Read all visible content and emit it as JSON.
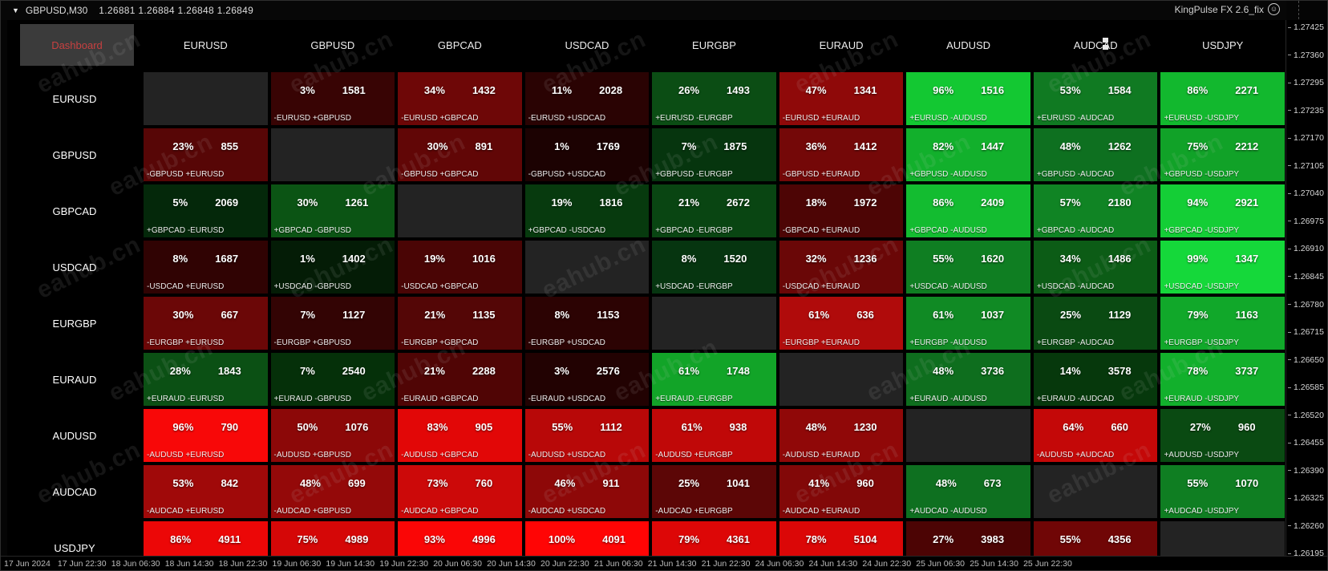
{
  "window": {
    "dropdown_glyph": "▼",
    "title_symbol": "GBPUSD,M30",
    "title_quotes": "1.26881 1.26884 1.26848 1.26849",
    "brand": "KingPulse FX 2.6_fix",
    "smiley_glyph": "☺"
  },
  "dashboard": {
    "button_label": "Dashboard",
    "columns": [
      "EURUSD",
      "GBPUSD",
      "GBPCAD",
      "USDCAD",
      "EURGBP",
      "EURAUD",
      "AUDUSD",
      "AUDCAD",
      "USDJPY"
    ],
    "rows": [
      {
        "label": "EURUSD",
        "cells": [
          null,
          {
            "pct": "3%",
            "val": "1581",
            "action": "-EURUSD +GBPUSD",
            "bg": "#380404"
          },
          {
            "pct": "34%",
            "val": "1432",
            "action": "-EURUSD +GBPCAD",
            "bg": "#6e0707"
          },
          {
            "pct": "11%",
            "val": "2028",
            "action": "-EURUSD +USDCAD",
            "bg": "#2a0303"
          },
          {
            "pct": "26%",
            "val": "1493",
            "action": "+EURUSD -EURGBP",
            "bg": "#0b4d14"
          },
          {
            "pct": "47%",
            "val": "1341",
            "action": "-EURUSD +EURAUD",
            "bg": "#8f0909"
          },
          {
            "pct": "96%",
            "val": "1516",
            "action": "+EURUSD -AUDUSD",
            "bg": "#13c832"
          },
          {
            "pct": "53%",
            "val": "1584",
            "action": "+EURUSD -AUDCAD",
            "bg": "#107a22"
          },
          {
            "pct": "86%",
            "val": "2271",
            "action": "+EURUSD -USDJPY",
            "bg": "#12b82e"
          }
        ]
      },
      {
        "label": "GBPUSD",
        "cells": [
          {
            "pct": "23%",
            "val": "855",
            "action": "-GBPUSD +EURUSD",
            "bg": "#570606"
          },
          null,
          {
            "pct": "30%",
            "val": "891",
            "action": "-GBPUSD +GBPCAD",
            "bg": "#610606"
          },
          {
            "pct": "1%",
            "val": "1769",
            "action": "-GBPUSD +USDCAD",
            "bg": "#1c0202"
          },
          {
            "pct": "7%",
            "val": "1875",
            "action": "+GBPUSD -EURGBP",
            "bg": "#06350e"
          },
          {
            "pct": "36%",
            "val": "1412",
            "action": "-GBPUSD +EURAUD",
            "bg": "#740808"
          },
          {
            "pct": "82%",
            "val": "1447",
            "action": "+GBPUSD -AUDUSD",
            "bg": "#12b02c"
          },
          {
            "pct": "48%",
            "val": "1262",
            "action": "+GBPUSD -AUDCAD",
            "bg": "#0e7020"
          },
          {
            "pct": "75%",
            "val": "2212",
            "action": "+GBPUSD -USDJPY",
            "bg": "#11a228"
          }
        ]
      },
      {
        "label": "GBPCAD",
        "cells": [
          {
            "pct": "5%",
            "val": "2069",
            "action": "+GBPCAD -EURUSD",
            "bg": "#04280a"
          },
          {
            "pct": "30%",
            "val": "1261",
            "action": "+GBPCAD -GBPUSD",
            "bg": "#0b5414"
          },
          null,
          {
            "pct": "19%",
            "val": "1816",
            "action": "+GBPCAD -USDCAD",
            "bg": "#073a0e"
          },
          {
            "pct": "21%",
            "val": "2672",
            "action": "+GBPCAD -EURGBP",
            "bg": "#094512"
          },
          {
            "pct": "18%",
            "val": "1972",
            "action": "-GBPCAD +EURAUD",
            "bg": "#4d0505"
          },
          {
            "pct": "86%",
            "val": "2409",
            "action": "+GBPCAD -AUDUSD",
            "bg": "#13bc30"
          },
          {
            "pct": "57%",
            "val": "2180",
            "action": "+GBPCAD -AUDCAD",
            "bg": "#108424"
          },
          {
            "pct": "94%",
            "val": "2921",
            "action": "+GBPCAD -USDJPY",
            "bg": "#14ce36"
          }
        ]
      },
      {
        "label": "USDCAD",
        "cells": [
          {
            "pct": "8%",
            "val": "1687",
            "action": "-USDCAD +EURUSD",
            "bg": "#300303"
          },
          {
            "pct": "1%",
            "val": "1402",
            "action": "+USDCAD -GBPUSD",
            "bg": "#041c06"
          },
          {
            "pct": "19%",
            "val": "1016",
            "action": "-USDCAD +GBPCAD",
            "bg": "#4a0505"
          },
          null,
          {
            "pct": "8%",
            "val": "1520",
            "action": "+USDCAD -EURGBP",
            "bg": "#063510"
          },
          {
            "pct": "32%",
            "val": "1236",
            "action": "-USDCAD +EURAUD",
            "bg": "#6a0707"
          },
          {
            "pct": "55%",
            "val": "1620",
            "action": "+USDCAD -AUDUSD",
            "bg": "#0f7e22"
          },
          {
            "pct": "34%",
            "val": "1486",
            "action": "+USDCAD -AUDCAD",
            "bg": "#0c5c16"
          },
          {
            "pct": "99%",
            "val": "1347",
            "action": "+USDCAD -USDJPY",
            "bg": "#15d83a"
          }
        ]
      },
      {
        "label": "EURGBP",
        "cells": [
          {
            "pct": "30%",
            "val": "667",
            "action": "-EURGBP +EURUSD",
            "bg": "#6b0707"
          },
          {
            "pct": "7%",
            "val": "1127",
            "action": "-EURGBP +GBPUSD",
            "bg": "#330404"
          },
          {
            "pct": "21%",
            "val": "1135",
            "action": "-EURGBP +GBPCAD",
            "bg": "#540606"
          },
          {
            "pct": "8%",
            "val": "1153",
            "action": "-EURGBP +USDCAD",
            "bg": "#2c0303"
          },
          null,
          {
            "pct": "61%",
            "val": "636",
            "action": "-EURGBP +EURAUD",
            "bg": "#b00b0b"
          },
          {
            "pct": "61%",
            "val": "1037",
            "action": "+EURGBP -AUDUSD",
            "bg": "#108a24"
          },
          {
            "pct": "25%",
            "val": "1129",
            "action": "+EURGBP -AUDCAD",
            "bg": "#0a4a12"
          },
          {
            "pct": "79%",
            "val": "1163",
            "action": "+EURGBP -USDJPY",
            "bg": "#11a82a"
          }
        ]
      },
      {
        "label": "EURAUD",
        "cells": [
          {
            "pct": "28%",
            "val": "1843",
            "action": "+EURAUD -EURUSD",
            "bg": "#0b5014"
          },
          {
            "pct": "7%",
            "val": "2540",
            "action": "+EURAUD -GBPUSD",
            "bg": "#053009"
          },
          {
            "pct": "21%",
            "val": "2288",
            "action": "-EURAUD +GBPCAD",
            "bg": "#500505"
          },
          {
            "pct": "3%",
            "val": "2576",
            "action": "-EURAUD +USDCAD",
            "bg": "#220202"
          },
          {
            "pct": "61%",
            "val": "1748",
            "action": "+EURAUD -EURGBP",
            "bg": "#12a428"
          },
          null,
          {
            "pct": "48%",
            "val": "3736",
            "action": "+EURAUD -AUDUSD",
            "bg": "#0e6e1e"
          },
          {
            "pct": "14%",
            "val": "3578",
            "action": "+EURAUD -AUDCAD",
            "bg": "#06380c"
          },
          {
            "pct": "78%",
            "val": "3737",
            "action": "+EURAUD -USDJPY",
            "bg": "#12b02c"
          }
        ]
      },
      {
        "label": "AUDUSD",
        "cells": [
          {
            "pct": "96%",
            "val": "790",
            "action": "-AUDUSD +EURUSD",
            "bg": "#f80808"
          },
          {
            "pct": "50%",
            "val": "1076",
            "action": "-AUDUSD +GBPUSD",
            "bg": "#8c0808"
          },
          {
            "pct": "83%",
            "val": "905",
            "action": "-AUDUSD +GBPCAD",
            "bg": "#e20707"
          },
          {
            "pct": "55%",
            "val": "1112",
            "action": "-AUDUSD +USDCAD",
            "bg": "#b80808"
          },
          {
            "pct": "61%",
            "val": "938",
            "action": "-AUDUSD +EURGBP",
            "bg": "#c00808"
          },
          {
            "pct": "48%",
            "val": "1230",
            "action": "-AUDUSD +EURAUD",
            "bg": "#900808"
          },
          null,
          {
            "pct": "64%",
            "val": "660",
            "action": "-AUDUSD +AUDCAD",
            "bg": "#c40808"
          },
          {
            "pct": "27%",
            "val": "960",
            "action": "+AUDUSD -USDJPY",
            "bg": "#0a4a12"
          }
        ]
      },
      {
        "label": "AUDCAD",
        "cells": [
          {
            "pct": "53%",
            "val": "842",
            "action": "-AUDCAD +EURUSD",
            "bg": "#a00909"
          },
          {
            "pct": "48%",
            "val": "699",
            "action": "-AUDCAD +GBPUSD",
            "bg": "#940909"
          },
          {
            "pct": "73%",
            "val": "760",
            "action": "-AUDCAD +GBPCAD",
            "bg": "#cc0909"
          },
          {
            "pct": "46%",
            "val": "911",
            "action": "-AUDCAD +USDCAD",
            "bg": "#8e0808"
          },
          {
            "pct": "25%",
            "val": "1041",
            "action": "-AUDCAD +EURGBP",
            "bg": "#5c0606"
          },
          {
            "pct": "41%",
            "val": "960",
            "action": "-AUDCAD +EURAUD",
            "bg": "#820808"
          },
          {
            "pct": "48%",
            "val": "673",
            "action": "+AUDCAD -AUDUSD",
            "bg": "#0e7020"
          },
          null,
          {
            "pct": "55%",
            "val": "1070",
            "action": "+AUDCAD -USDJPY",
            "bg": "#0f7e22"
          }
        ]
      },
      {
        "label": "USDJPY",
        "cells": [
          {
            "pct": "86%",
            "val": "4911",
            "action": "-USDJPY +EURUSD",
            "bg": "#ec0707"
          },
          {
            "pct": "75%",
            "val": "4989",
            "action": "-USDJPY +GBPUSD",
            "bg": "#d50707"
          },
          {
            "pct": "93%",
            "val": "4996",
            "action": "-USDJPY +GBPCAD",
            "bg": "#fa0606"
          },
          {
            "pct": "100%",
            "val": "4091",
            "action": "-USDJPY +USDCAD",
            "bg": "#ff0505"
          },
          {
            "pct": "79%",
            "val": "4361",
            "action": "-USDJPY +EURGBP",
            "bg": "#dd0707"
          },
          {
            "pct": "78%",
            "val": "5104",
            "action": "-USDJPY +EURAUD",
            "bg": "#db0707"
          },
          {
            "pct": "27%",
            "val": "3983",
            "action": "-USDJPY +AUDUSD",
            "bg": "#4c0404"
          },
          {
            "pct": "55%",
            "val": "4356",
            "action": "-USDJPY +AUDCAD",
            "bg": "#700606"
          },
          null
        ]
      }
    ]
  },
  "price_axis": [
    "1.27425",
    "1.27360",
    "1.27295",
    "1.27235",
    "1.27170",
    "1.27105",
    "1.27040",
    "1.26975",
    "1.26910",
    "1.26845",
    "1.26780",
    "1.26715",
    "1.26650",
    "1.26585",
    "1.26520",
    "1.26455",
    "1.26390",
    "1.26325",
    "1.26260",
    "1.26195"
  ],
  "time_axis": [
    "17 Jun 2024",
    "17 Jun 22:30",
    "18 Jun 06:30",
    "18 Jun 14:30",
    "18 Jun 22:30",
    "19 Jun 06:30",
    "19 Jun 14:30",
    "19 Jun 22:30",
    "20 Jun 06:30",
    "20 Jun 14:30",
    "20 Jun 22:30",
    "21 Jun 06:30",
    "21 Jun 14:30",
    "21 Jun 22:30",
    "24 Jun 06:30",
    "24 Jun 14:30",
    "24 Jun 22:30",
    "25 Jun 06:30",
    "25 Jun 14:30",
    "25 Jun 22:30"
  ],
  "watermark_text": "eahub.cn",
  "colors": {
    "bull_bright": "#15d83a",
    "bear_bright": "#ff0505",
    "diagonal": "#232323",
    "dashboard_button_bg": "#3b3b3b",
    "dashboard_button_text": "#c74040"
  }
}
